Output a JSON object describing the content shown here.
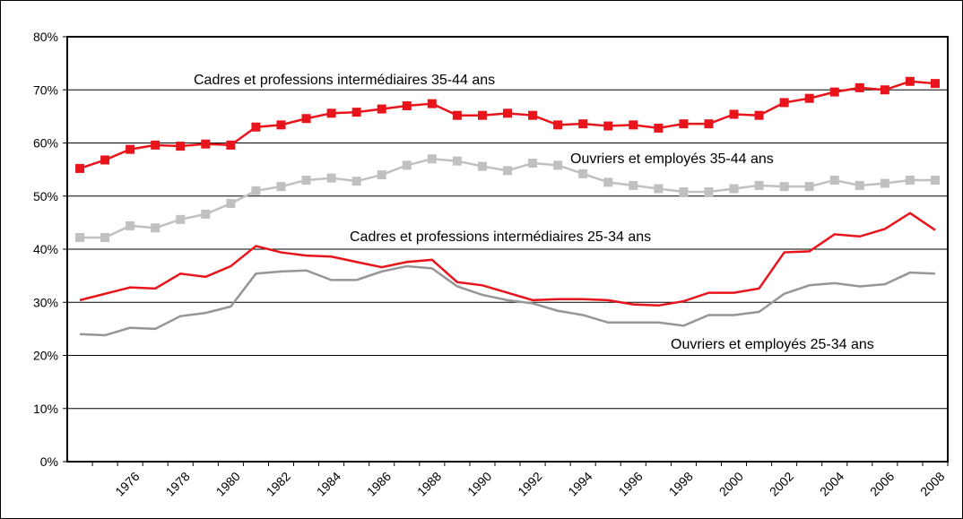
{
  "chart_data": {
    "type": "line",
    "categories": [
      null,
      null,
      "1976",
      null,
      "1978",
      null,
      "1980",
      null,
      "1982",
      null,
      "1984",
      null,
      "1986",
      null,
      "1988",
      null,
      "1990",
      null,
      "1992",
      null,
      "1994",
      null,
      "1996",
      null,
      "1998",
      null,
      "2000",
      null,
      "2002",
      null,
      "2004",
      null,
      "2006",
      null,
      "2008"
    ],
    "ylim": [
      0,
      80
    ],
    "yticks": [
      {
        "value": 0,
        "label": "0%"
      },
      {
        "value": 10,
        "label": "10%"
      },
      {
        "value": 20,
        "label": "20%"
      },
      {
        "value": 30,
        "label": "30%"
      },
      {
        "value": 40,
        "label": "40%"
      },
      {
        "value": 50,
        "label": "50%"
      },
      {
        "value": 60,
        "label": "60%"
      },
      {
        "value": 70,
        "label": "70%"
      },
      {
        "value": 80,
        "label": "80%"
      }
    ],
    "grid": true,
    "series": [
      {
        "name": "Cadres et professions intermédiaires 35-44 ans",
        "color": "#e8141b",
        "marker": "square",
        "values": [
          55.2,
          56.8,
          58.8,
          59.6,
          59.4,
          59.8,
          59.6,
          63,
          63.4,
          64.6,
          65.6,
          65.8,
          66.4,
          67,
          67.4,
          65.2,
          65.2,
          65.6,
          65.2,
          63.4,
          63.6,
          63.2,
          63.4,
          62.8,
          63.6,
          63.6,
          65.4,
          65.2,
          67.6,
          68.4,
          69.6,
          70.4,
          70,
          71.6,
          71.2
        ]
      },
      {
        "name": "Ouvriers et employés 35-44 ans",
        "color": "#c0c0c0",
        "marker": "square",
        "values": [
          42.2,
          42.2,
          44.4,
          44,
          45.6,
          46.6,
          48.6,
          51,
          51.8,
          53,
          53.4,
          52.8,
          54,
          55.8,
          57,
          56.6,
          55.6,
          54.8,
          56.2,
          55.8,
          54.2,
          52.6,
          52,
          51.4,
          50.8,
          50.8,
          51.4,
          52,
          51.8,
          51.8,
          53,
          52,
          52.4,
          53,
          53
        ]
      },
      {
        "name": "Cadres et professions intermédiaires 25-34 ans",
        "color": "#e8141b",
        "marker": null,
        "values": [
          30.4,
          31.6,
          32.8,
          32.6,
          35.4,
          34.8,
          36.8,
          40.6,
          39.4,
          38.8,
          38.6,
          37.6,
          36.6,
          37.6,
          38,
          33.8,
          33.2,
          31.8,
          30.4,
          30.6,
          30.6,
          30.4,
          29.6,
          29.4,
          30.2,
          31.8,
          31.8,
          32.6,
          39.4,
          39.6,
          42.8,
          42.4,
          43.8,
          46.8,
          43.6
        ]
      },
      {
        "name": "Ouvriers et employés 25-34 ans",
        "color": "#969696",
        "marker": null,
        "values": [
          24,
          23.8,
          25.2,
          25,
          27.4,
          28,
          29.2,
          35.4,
          35.8,
          36,
          34.2,
          34.2,
          35.8,
          36.8,
          36.4,
          33,
          31.4,
          30.4,
          29.8,
          28.4,
          27.6,
          26.2,
          26.2,
          26.2,
          25.6,
          27.6,
          27.6,
          28.2,
          31.6,
          33.2,
          33.6,
          33,
          33.4,
          35.6,
          35.4
        ]
      }
    ]
  }
}
